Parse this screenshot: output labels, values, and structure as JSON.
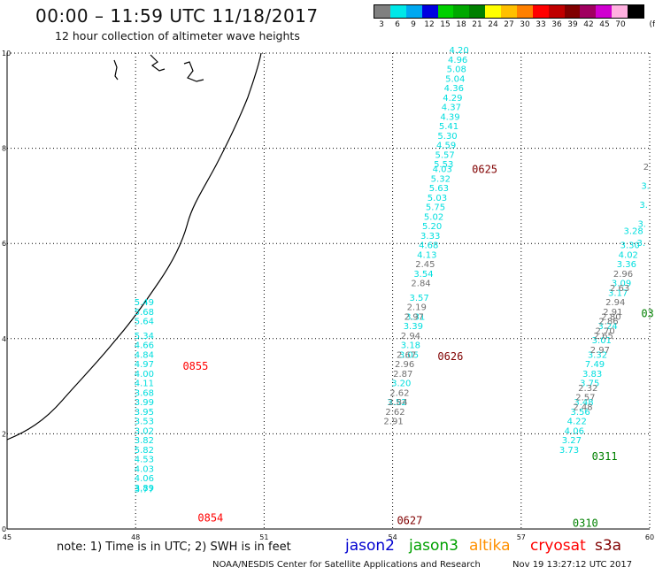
{
  "header": {
    "title": "00:00 – 11:59 UTC 11/18/2017",
    "subtitle": "12 hour collection of altimeter wave heights"
  },
  "legend": {
    "unit": "(ft)",
    "bins": [
      {
        "label": "3",
        "color": "#808080"
      },
      {
        "label": "6",
        "color": "#00e8e8"
      },
      {
        "label": "9",
        "color": "#00a8f0"
      },
      {
        "label": "12",
        "color": "#0000e0"
      },
      {
        "label": "15",
        "color": "#00d000"
      },
      {
        "label": "18",
        "color": "#00a800"
      },
      {
        "label": "21",
        "color": "#008000"
      },
      {
        "label": "24",
        "color": "#ffff00"
      },
      {
        "label": "27",
        "color": "#ffc000"
      },
      {
        "label": "30",
        "color": "#ff8000"
      },
      {
        "label": "33",
        "color": "#ff0000"
      },
      {
        "label": "36",
        "color": "#c00000"
      },
      {
        "label": "39",
        "color": "#800000"
      },
      {
        "label": "42",
        "color": "#a00060"
      },
      {
        "label": "45",
        "color": "#d000d0"
      },
      {
        "label": "70",
        "color": "#ffb0e0"
      },
      {
        "label": "",
        "color": "#000000"
      }
    ]
  },
  "axes": {
    "lon_ticks": [
      "45",
      "48",
      "51",
      "54",
      "57",
      "60"
    ],
    "lat_ticks": [
      "0",
      "2",
      "4",
      "6",
      "8",
      "10"
    ]
  },
  "tracks": [
    {
      "color": "#00dede",
      "points": [
        [
          5.49,
          48.2,
          4.7
        ],
        [
          5.68,
          48.2,
          4.5
        ],
        [
          5.64,
          48.2,
          4.3
        ],
        [
          5.34,
          48.2,
          4.0
        ],
        [
          4.66,
          48.2,
          3.8
        ],
        [
          4.84,
          48.2,
          3.6
        ],
        [
          4.97,
          48.2,
          3.4
        ],
        [
          4.0,
          48.2,
          3.2
        ],
        [
          4.11,
          48.2,
          3.0
        ],
        [
          3.68,
          48.2,
          2.8
        ],
        [
          3.99,
          48.2,
          2.6
        ],
        [
          3.95,
          48.2,
          2.4
        ],
        [
          3.53,
          48.2,
          2.2
        ],
        [
          3.02,
          48.2,
          2.0
        ],
        [
          3.82,
          48.2,
          1.8
        ],
        [
          5.82,
          48.2,
          1.6
        ],
        [
          4.53,
          48.2,
          1.4
        ],
        [
          4.03,
          48.2,
          1.2
        ],
        [
          4.06,
          48.2,
          1.0
        ],
        [
          3.89,
          48.2,
          0.8
        ],
        [
          3.77,
          48.2,
          0.77
        ]
      ]
    },
    {
      "color": "#00dede",
      "points": [
        [
          4.2,
          55.55,
          10.0
        ],
        [
          4.96,
          55.52,
          9.8
        ],
        [
          5.08,
          55.49,
          9.6
        ],
        [
          5.04,
          55.46,
          9.4
        ],
        [
          4.36,
          55.43,
          9.2
        ],
        [
          4.29,
          55.4,
          9.0
        ],
        [
          4.37,
          55.37,
          8.8
        ],
        [
          4.39,
          55.34,
          8.6
        ],
        [
          5.41,
          55.31,
          8.4
        ],
        [
          5.3,
          55.28,
          8.2
        ],
        [
          4.59,
          55.25,
          8.0
        ],
        [
          5.57,
          55.22,
          7.8
        ],
        [
          5.53,
          55.19,
          7.6
        ],
        [
          4.03,
          55.16,
          7.5
        ],
        [
          5.32,
          55.12,
          7.3
        ],
        [
          5.63,
          55.08,
          7.1
        ],
        [
          5.03,
          55.04,
          6.9
        ],
        [
          5.75,
          55.0,
          6.7
        ],
        [
          5.02,
          54.96,
          6.5
        ],
        [
          5.2,
          54.92,
          6.3
        ],
        [
          3.33,
          54.88,
          6.1
        ],
        [
          4.68,
          54.84,
          5.9
        ],
        [
          4.13,
          54.8,
          5.7
        ],
        [
          3.54,
          54.72,
          5.3
        ],
        [
          3.57,
          54.62,
          4.8
        ],
        [
          3.31,
          54.53,
          4.4
        ],
        [
          3.39,
          54.48,
          4.2
        ],
        [
          3.18,
          54.42,
          3.8
        ],
        [
          3.05,
          54.38,
          3.6
        ],
        [
          3.2,
          54.2,
          3.0
        ],
        [
          3.52,
          54.1,
          2.6
        ]
      ]
    },
    {
      "color": "#707070",
      "points": [
        [
          2.45,
          54.76,
          5.5
        ],
        [
          2.84,
          54.66,
          5.1
        ],
        [
          2.19,
          54.56,
          4.6
        ],
        [
          2.97,
          54.5,
          4.4
        ],
        [
          2.94,
          54.42,
          4.0
        ],
        [
          2.67,
          54.32,
          3.6
        ],
        [
          2.96,
          54.28,
          3.4
        ],
        [
          2.87,
          54.24,
          3.2
        ],
        [
          2.62,
          54.16,
          2.8
        ],
        [
          2.84,
          54.12,
          2.6
        ],
        [
          2.62,
          54.06,
          2.4
        ],
        [
          2.91,
          54.02,
          2.2
        ]
      ]
    },
    {
      "color": "#00dede",
      "points": [
        [
          3.28,
          59.62,
          6.2
        ],
        [
          3.3,
          59.54,
          5.9
        ],
        [
          4.02,
          59.5,
          5.7
        ],
        [
          3.36,
          59.46,
          5.5
        ],
        [
          3.09,
          59.34,
          5.1
        ],
        [
          3.17,
          59.26,
          4.9
        ],
        [
          3.24,
          59.02,
          4.2
        ],
        [
          3.01,
          58.88,
          3.9
        ],
        [
          3.32,
          58.78,
          3.6
        ],
        [
          7.49,
          58.72,
          3.4
        ],
        [
          3.83,
          58.66,
          3.2
        ],
        [
          3.75,
          58.6,
          3.0
        ],
        [
          3.48,
          58.46,
          2.6
        ],
        [
          3.56,
          58.38,
          2.4
        ],
        [
          4.22,
          58.3,
          2.2
        ],
        [
          4.06,
          58.24,
          2.0
        ],
        [
          3.27,
          58.18,
          1.8
        ],
        [
          3.73,
          58.12,
          1.6
        ]
      ]
    },
    {
      "color": "#707070",
      "points": [
        [
          2.96,
          59.38,
          5.3
        ],
        [
          2.63,
          59.3,
          5.0
        ],
        [
          2.94,
          59.2,
          4.7
        ],
        [
          2.91,
          59.14,
          4.5
        ],
        [
          2.8,
          59.1,
          4.4
        ],
        [
          2.86,
          59.04,
          4.3
        ],
        [
          2.7,
          58.96,
          4.1
        ],
        [
          2.65,
          58.92,
          4.0
        ],
        [
          2.97,
          58.84,
          3.7
        ],
        [
          2.32,
          58.56,
          2.9
        ],
        [
          2.57,
          58.5,
          2.7
        ],
        [
          2.48,
          58.44,
          2.5
        ]
      ]
    }
  ],
  "pass_times": [
    {
      "label": "0625",
      "lon": 55.85,
      "lat": 7.48,
      "color": "#800000"
    },
    {
      "label": "0626",
      "lon": 55.05,
      "lat": 3.55,
      "color": "#800000"
    },
    {
      "label": "0627",
      "lon": 54.1,
      "lat": 0.1,
      "color": "#800000"
    },
    {
      "label": "0855",
      "lon": 49.1,
      "lat": 3.35,
      "color": "#ff0000"
    },
    {
      "label": "0854",
      "lon": 49.45,
      "lat": 0.16,
      "color": "#ff0000"
    },
    {
      "label": "0311",
      "lon": 58.65,
      "lat": 1.45,
      "color": "#008000"
    },
    {
      "label": "0310",
      "lon": 58.2,
      "lat": 0.05,
      "color": "#008000"
    },
    {
      "label": "03",
      "lon": 59.8,
      "lat": 4.45,
      "color": "#008000"
    }
  ],
  "edge_values": [
    {
      "label": "3.",
      "lon": 59.7,
      "lat": 5.95,
      "color": "#00dede"
    },
    {
      "label": "3.",
      "lon": 59.72,
      "lat": 6.35,
      "color": "#00dede"
    },
    {
      "label": "3.",
      "lon": 59.76,
      "lat": 6.75,
      "color": "#00dede"
    },
    {
      "label": "3.",
      "lon": 59.8,
      "lat": 7.15,
      "color": "#00dede"
    },
    {
      "label": "2",
      "lon": 59.85,
      "lat": 7.55,
      "color": "#707070"
    }
  ],
  "footer": {
    "note": "note: 1) Time is in UTC; 2) SWH is in feet",
    "satellites": [
      {
        "name": "jason2",
        "color": "#0000d0"
      },
      {
        "name": "jason3",
        "color": "#00a000"
      },
      {
        "name": "altika",
        "color": "#ff9000"
      },
      {
        "name": "cryosat",
        "color": "#ff0000"
      },
      {
        "name": "s3a",
        "color": "#800000"
      }
    ],
    "credit": "NOAA/NESDIS Center for Satellite Applications and Research",
    "timestamp": "Nov 19 13:27:12 UTC 2017"
  }
}
